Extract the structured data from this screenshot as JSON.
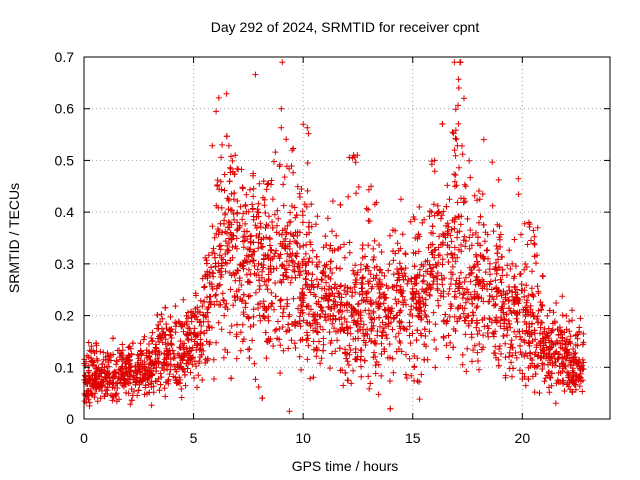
{
  "chart_data": {
    "type": "scatter",
    "title": "Day 292 of 2024, SRMTID for receiver cpnt",
    "xlabel": "GPS time / hours",
    "ylabel": "SRMTID / TECUs",
    "xlim": [
      0,
      24
    ],
    "ylim": [
      0,
      0.7
    ],
    "xticks": [
      0,
      5,
      10,
      15,
      20
    ],
    "yticks": [
      0,
      0.1,
      0.2,
      0.3,
      0.4,
      0.5,
      0.6,
      0.7
    ],
    "xtick_labels": [
      "0",
      "5",
      "10",
      "15",
      "20"
    ],
    "ytick_labels": [
      "0",
      "0.1",
      "0.2",
      "0.3",
      "0.4",
      "0.5",
      "0.6",
      "0.7"
    ],
    "grid": true,
    "marker": "plus",
    "color": "#e00000",
    "series": [
      {
        "name": "cpnt",
        "x_range": [
          0,
          22.8
        ],
        "count": 3000,
        "trend": {
          "x": [
            0,
            1,
            2,
            3,
            3.5,
            4,
            5,
            5.5,
            6,
            6.5,
            7,
            8,
            9,
            10,
            11,
            12,
            13,
            14,
            15,
            16,
            16.5,
            17,
            18,
            19,
            20,
            20.5,
            21,
            22,
            22.8
          ],
          "y": [
            0.09,
            0.08,
            0.09,
            0.1,
            0.14,
            0.13,
            0.15,
            0.18,
            0.3,
            0.33,
            0.3,
            0.29,
            0.28,
            0.25,
            0.23,
            0.19,
            0.21,
            0.22,
            0.22,
            0.26,
            0.28,
            0.29,
            0.26,
            0.21,
            0.18,
            0.17,
            0.14,
            0.12,
            0.1
          ]
        },
        "peaks": [
          {
            "x": 6.3,
            "y": 0.53
          },
          {
            "x": 6.9,
            "y": 0.51
          },
          {
            "x": 8.2,
            "y": 0.46
          },
          {
            "x": 9.0,
            "y": 0.6
          },
          {
            "x": 9.5,
            "y": 0.52
          },
          {
            "x": 10.0,
            "y": 0.57
          },
          {
            "x": 12.3,
            "y": 0.51
          },
          {
            "x": 13.1,
            "y": 0.45
          },
          {
            "x": 15.3,
            "y": 0.41
          },
          {
            "x": 16.0,
            "y": 0.5
          },
          {
            "x": 16.9,
            "y": 0.69
          },
          {
            "x": 17.1,
            "y": 0.64
          },
          {
            "x": 20.3,
            "y": 0.38
          },
          {
            "x": 20.7,
            "y": 0.37
          }
        ]
      }
    ]
  }
}
